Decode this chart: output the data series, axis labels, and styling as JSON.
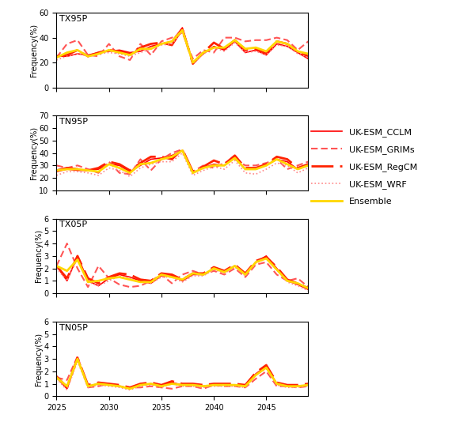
{
  "years": [
    2025,
    2026,
    2027,
    2028,
    2029,
    2030,
    2031,
    2032,
    2033,
    2034,
    2035,
    2036,
    2037,
    2038,
    2039,
    2040,
    2041,
    2042,
    2043,
    2044,
    2045,
    2046,
    2047,
    2048,
    2049
  ],
  "TX95P": {
    "CCLM": [
      25,
      25,
      27,
      26,
      28,
      29,
      30,
      28,
      29,
      33,
      35,
      37,
      48,
      20,
      27,
      33,
      30,
      37,
      28,
      30,
      26,
      35,
      33,
      28,
      23
    ],
    "GRIMs": [
      24,
      35,
      38,
      26,
      25,
      35,
      25,
      22,
      35,
      26,
      37,
      40,
      44,
      23,
      30,
      28,
      40,
      40,
      37,
      38,
      38,
      40,
      38,
      30,
      37
    ],
    "RegCM": [
      25,
      26,
      30,
      25,
      28,
      30,
      29,
      27,
      32,
      35,
      36,
      34,
      47,
      19,
      28,
      36,
      31,
      38,
      30,
      31,
      27,
      37,
      35,
      29,
      25
    ],
    "WRF": [
      22,
      25,
      27,
      25,
      27,
      28,
      27,
      25,
      28,
      31,
      34,
      35,
      45,
      19,
      27,
      32,
      29,
      36,
      28,
      29,
      26,
      34,
      33,
      27,
      24
    ],
    "Ensemble": [
      24,
      28,
      30,
      25,
      27,
      30,
      28,
      26,
      31,
      31,
      35,
      37,
      46,
      20,
      28,
      32,
      32,
      38,
      31,
      32,
      29,
      37,
      35,
      29,
      27
    ],
    "ylim": [
      0,
      60
    ],
    "yticks": [
      0,
      20,
      40,
      60
    ]
  },
  "TN95P": {
    "CCLM": [
      25,
      27,
      26,
      26,
      27,
      31,
      30,
      25,
      30,
      35,
      36,
      38,
      42,
      24,
      28,
      31,
      30,
      37,
      27,
      27,
      30,
      35,
      33,
      27,
      30
    ],
    "GRIMs": [
      30,
      28,
      30,
      27,
      24,
      33,
      24,
      23,
      35,
      26,
      35,
      40,
      43,
      25,
      30,
      28,
      32,
      35,
      30,
      30,
      32,
      35,
      27,
      30,
      33
    ],
    "RegCM": [
      26,
      28,
      27,
      26,
      28,
      33,
      31,
      26,
      32,
      37,
      37,
      35,
      43,
      25,
      29,
      34,
      31,
      38,
      28,
      28,
      31,
      37,
      35,
      28,
      31
    ],
    "WRF": [
      22,
      25,
      25,
      24,
      22,
      28,
      26,
      21,
      28,
      31,
      33,
      33,
      40,
      22,
      26,
      29,
      27,
      34,
      24,
      23,
      27,
      32,
      30,
      24,
      28
    ],
    "Ensemble": [
      26,
      27,
      27,
      26,
      25,
      31,
      28,
      24,
      31,
      32,
      35,
      37,
      42,
      24,
      28,
      30,
      30,
      36,
      27,
      27,
      30,
      35,
      31,
      27,
      30
    ],
    "ylim": [
      10,
      70
    ],
    "yticks": [
      10,
      20,
      30,
      40,
      50,
      60,
      70
    ]
  },
  "TX05P": {
    "CCLM": [
      2.2,
      1.0,
      3.0,
      1.0,
      0.6,
      1.2,
      1.5,
      1.3,
      1.0,
      0.8,
      1.4,
      1.4,
      1.0,
      1.5,
      1.5,
      2.0,
      1.7,
      2.2,
      1.5,
      2.5,
      3.0,
      2.0,
      1.0,
      0.7,
      0.3
    ],
    "GRIMs": [
      2.2,
      4.0,
      2.0,
      0.5,
      2.2,
      1.2,
      0.7,
      0.5,
      0.6,
      1.0,
      1.5,
      0.8,
      1.5,
      1.8,
      1.5,
      1.8,
      1.5,
      2.0,
      1.3,
      2.3,
      2.5,
      1.5,
      1.0,
      1.2,
      0.5
    ],
    "RegCM": [
      2.2,
      1.2,
      3.0,
      1.2,
      0.8,
      1.3,
      1.6,
      1.5,
      1.1,
      1.0,
      1.6,
      1.5,
      1.1,
      1.6,
      1.6,
      2.1,
      1.8,
      2.3,
      1.6,
      2.6,
      2.9,
      2.1,
      1.1,
      0.8,
      0.4
    ],
    "WRF": [
      2.0,
      1.0,
      2.8,
      0.9,
      0.6,
      1.0,
      1.4,
      1.2,
      0.9,
      0.8,
      1.3,
      1.3,
      0.9,
      1.4,
      1.4,
      1.9,
      1.6,
      2.1,
      1.4,
      2.4,
      2.8,
      1.9,
      0.9,
      0.6,
      0.2
    ],
    "Ensemble": [
      2.2,
      1.8,
      2.7,
      0.9,
      1.0,
      1.2,
      1.3,
      1.1,
      0.9,
      0.9,
      1.5,
      1.3,
      1.1,
      1.6,
      1.5,
      2.0,
      1.7,
      2.2,
      1.5,
      2.5,
      2.8,
      1.9,
      1.0,
      0.8,
      0.4
    ],
    "ylim": [
      0,
      6
    ],
    "yticks": [
      0,
      1,
      2,
      3,
      4,
      5,
      6
    ]
  },
  "TN05P": {
    "CCLM": [
      1.5,
      0.6,
      3.0,
      0.8,
      1.0,
      0.9,
      0.8,
      0.6,
      0.9,
      1.0,
      0.8,
      1.1,
      0.9,
      0.9,
      0.8,
      0.9,
      0.9,
      0.9,
      0.8,
      1.8,
      2.4,
      1.0,
      0.8,
      0.8,
      0.9
    ],
    "GRIMs": [
      1.5,
      1.3,
      3.2,
      0.7,
      0.8,
      1.0,
      0.8,
      0.7,
      0.7,
      0.8,
      0.7,
      0.6,
      0.8,
      0.8,
      0.6,
      0.9,
      0.8,
      0.8,
      0.7,
      1.4,
      2.0,
      0.8,
      0.8,
      0.7,
      0.8
    ],
    "RegCM": [
      1.6,
      0.7,
      3.1,
      0.9,
      1.1,
      1.0,
      0.9,
      0.7,
      1.0,
      1.1,
      0.9,
      1.2,
      1.0,
      1.0,
      0.9,
      1.0,
      1.0,
      1.0,
      0.9,
      1.9,
      2.5,
      1.1,
      0.9,
      0.9,
      1.0
    ],
    "WRF": [
      1.4,
      0.5,
      2.8,
      0.7,
      0.9,
      0.8,
      0.7,
      0.5,
      0.8,
      0.9,
      0.7,
      1.0,
      0.8,
      0.8,
      0.7,
      0.8,
      0.8,
      0.8,
      0.7,
      1.7,
      2.2,
      0.9,
      0.7,
      0.7,
      0.8
    ],
    "Ensemble": [
      1.5,
      0.8,
      3.0,
      0.8,
      1.0,
      0.9,
      0.8,
      0.6,
      0.9,
      1.0,
      0.8,
      1.0,
      0.9,
      0.9,
      0.8,
      0.9,
      0.9,
      0.9,
      0.8,
      1.7,
      2.3,
      1.0,
      0.8,
      0.8,
      0.9
    ],
    "ylim": [
      0,
      6
    ],
    "yticks": [
      0,
      1,
      2,
      3,
      4,
      5,
      6
    ]
  },
  "colors": {
    "CCLM": "#FF0000",
    "GRIMs": "#FF5555",
    "RegCM": "#FF2200",
    "WRF": "#FF8888",
    "Ensemble": "#FFD700"
  },
  "linewidths": {
    "CCLM": 1.2,
    "GRIMs": 1.5,
    "RegCM": 2.0,
    "WRF": 1.2,
    "Ensemble": 2.0
  },
  "legend_labels": {
    "CCLM": "UK-ESM_CCLM",
    "GRIMs": "UK-ESM_GRIMs",
    "RegCM": "UK-ESM_RegCM",
    "WRF": "UK-ESM_WRF",
    "Ensemble": "Ensemble"
  },
  "subplot_titles": [
    "TX95P",
    "TN95P",
    "TX05P",
    "TN05P"
  ],
  "ylabel": "Frequency(%)"
}
